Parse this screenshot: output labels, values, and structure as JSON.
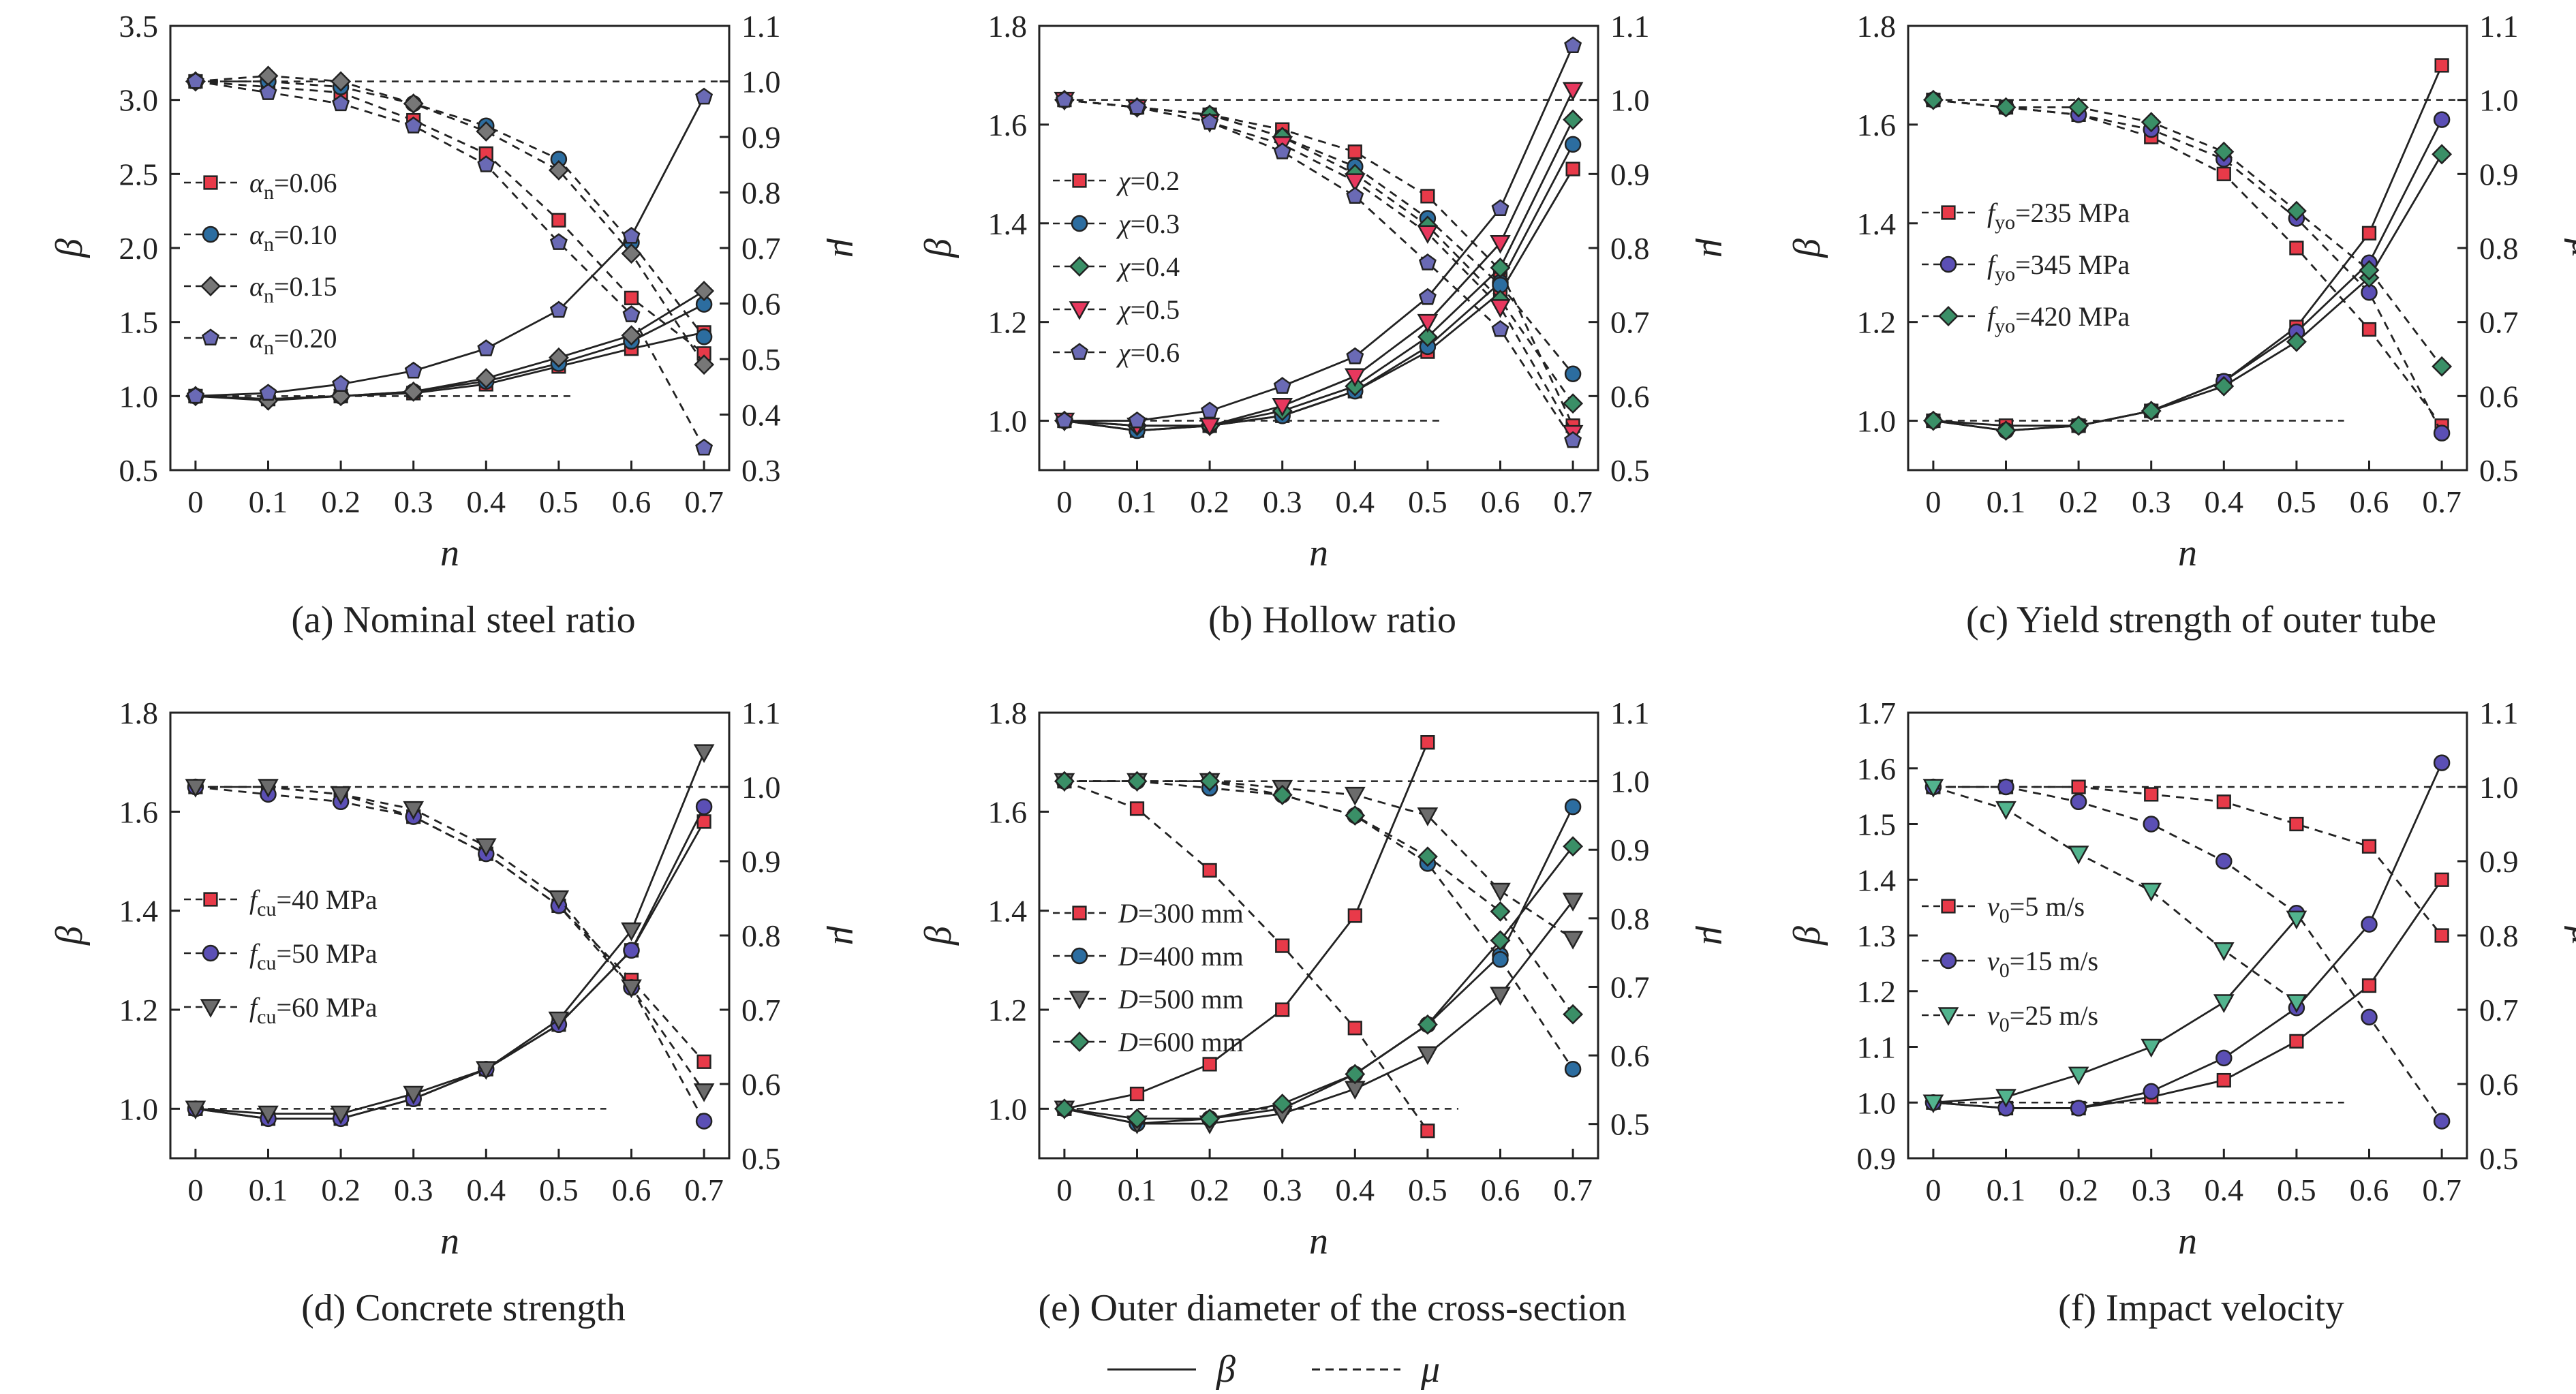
{
  "figure": {
    "legend": [
      {
        "label": "β",
        "style": "solid"
      },
      {
        "label": "μ",
        "style": "dashed"
      }
    ]
  },
  "marker_styles": {
    "square": {
      "color": "#e83a49"
    },
    "circle": {
      "color": "#2c6da0"
    },
    "diamond": {
      "color": "#777777"
    },
    "pentagon": {
      "color": "#6a6ab5"
    },
    "purple_circle": {
      "color": "#5b4fb5"
    },
    "green_diamond": {
      "color": "#3a8f67"
    },
    "triangle_down": {
      "color": "#e8385e"
    },
    "gray_triangle": {
      "color": "#6c6c6c"
    },
    "green_triangle": {
      "color": "#52b48e"
    }
  },
  "chart_data": [
    {
      "type": "line",
      "caption": "(a) Nominal steel ratio",
      "xlabel": "n",
      "ylabel": "β",
      "y2label": "μ",
      "x": [
        0,
        0.1,
        0.2,
        0.3,
        0.4,
        0.5,
        0.6,
        0.7
      ],
      "x_ticks": [
        "0",
        "0.1",
        "0.2",
        "0.3",
        "0.4",
        "0.5",
        "0.6",
        "0.7"
      ],
      "ylim": [
        0.5,
        3.5
      ],
      "y_ticks": [
        "0.5",
        "1.0",
        "1.5",
        "2.0",
        "2.5",
        "3.0",
        "3.5"
      ],
      "y2lim": [
        0.3,
        1.1
      ],
      "y2_ticks": [
        "0.3",
        "0.4",
        "0.5",
        "0.6",
        "0.7",
        "0.8",
        "0.9",
        "1.0",
        "1.1"
      ],
      "reference_lines": {
        "beta": 1.0,
        "mu": 1.0
      },
      "legend_items": [
        {
          "var": "α",
          "sub": "n",
          "text": "=0.06"
        },
        {
          "var": "α",
          "sub": "n",
          "text": "=0.10"
        },
        {
          "var": "α",
          "sub": "n",
          "text": "=0.15"
        },
        {
          "var": "α",
          "sub": "n",
          "text": "=0.20"
        }
      ],
      "series": [
        {
          "marker": "square",
          "beta": [
            1.0,
            0.98,
            1.0,
            1.02,
            1.08,
            1.2,
            1.32,
            1.43
          ],
          "mu": [
            1.0,
            0.99,
            0.98,
            0.93,
            0.87,
            0.75,
            0.61,
            0.51
          ]
        },
        {
          "marker": "circle",
          "beta": [
            1.0,
            0.98,
            1.0,
            1.03,
            1.1,
            1.22,
            1.37,
            1.62
          ],
          "mu": [
            1.0,
            1.0,
            0.99,
            0.96,
            0.92,
            0.86,
            0.71,
            0.54
          ]
        },
        {
          "marker": "diamond",
          "beta": [
            1.0,
            0.97,
            1.0,
            1.03,
            1.12,
            1.26,
            1.41,
            1.71
          ],
          "mu": [
            1.0,
            1.01,
            1.0,
            0.96,
            0.91,
            0.84,
            0.69,
            0.49
          ]
        },
        {
          "marker": "pentagon",
          "beta": [
            1.0,
            1.02,
            1.08,
            1.17,
            1.32,
            1.58,
            2.08,
            3.02
          ],
          "mu": [
            1.0,
            0.98,
            0.96,
            0.92,
            0.85,
            0.71,
            0.58,
            0.34
          ]
        }
      ]
    },
    {
      "type": "line",
      "caption": "(b) Hollow ratio",
      "xlabel": "n",
      "ylabel": "β",
      "y2label": "μ",
      "x": [
        0,
        0.1,
        0.2,
        0.3,
        0.4,
        0.5,
        0.6,
        0.7
      ],
      "x_ticks": [
        "0",
        "0.1",
        "0.2",
        "0.3",
        "0.4",
        "0.5",
        "0.6",
        "0.7"
      ],
      "ylim": [
        0.9,
        1.8
      ],
      "y_ticks": [
        "1.0",
        "1.2",
        "1.4",
        "1.6",
        "1.8"
      ],
      "y2lim": [
        0.5,
        1.1
      ],
      "y2_ticks": [
        "0.5",
        "0.6",
        "0.7",
        "0.8",
        "0.9",
        "1.0",
        "1.1"
      ],
      "reference_lines": {
        "beta": 1.0,
        "mu": 1.0
      },
      "legend_items": [
        {
          "var": "χ",
          "sub": "",
          "text": "=0.2"
        },
        {
          "var": "χ",
          "sub": "",
          "text": "=0.3"
        },
        {
          "var": "χ",
          "sub": "",
          "text": "=0.4"
        },
        {
          "var": "χ",
          "sub": "",
          "text": "=0.5"
        },
        {
          "var": "χ",
          "sub": "",
          "text": "=0.6"
        }
      ],
      "series": [
        {
          "marker": "square",
          "beta": [
            1.0,
            0.98,
            0.99,
            1.01,
            1.06,
            1.14,
            1.26,
            1.51
          ],
          "mu": [
            1.0,
            0.99,
            0.98,
            0.96,
            0.93,
            0.87,
            0.77,
            0.56
          ]
        },
        {
          "marker": "circle",
          "beta": [
            1.0,
            0.98,
            0.99,
            1.01,
            1.06,
            1.15,
            1.28,
            1.56
          ],
          "mu": [
            1.0,
            0.99,
            0.98,
            0.95,
            0.91,
            0.84,
            0.75,
            0.63
          ]
        },
        {
          "marker": "green_diamond",
          "beta": [
            1.0,
            0.99,
            0.99,
            1.02,
            1.07,
            1.17,
            1.31,
            1.61
          ],
          "mu": [
            1.0,
            0.99,
            0.98,
            0.95,
            0.9,
            0.83,
            0.73,
            0.59
          ]
        },
        {
          "marker": "triangle_down",
          "beta": [
            1.0,
            0.99,
            0.99,
            1.03,
            1.09,
            1.2,
            1.36,
            1.67
          ],
          "mu": [
            1.0,
            0.99,
            0.97,
            0.94,
            0.89,
            0.82,
            0.72,
            0.55
          ]
        },
        {
          "marker": "pentagon",
          "beta": [
            1.0,
            1.0,
            1.02,
            1.07,
            1.13,
            1.25,
            1.43,
            1.76
          ],
          "mu": [
            1.0,
            0.99,
            0.97,
            0.93,
            0.87,
            0.78,
            0.69,
            0.54
          ]
        }
      ]
    },
    {
      "type": "line",
      "caption": "(c) Yield strength of outer tube",
      "xlabel": "n",
      "ylabel": "β",
      "y2label": "μ",
      "x": [
        0,
        0.1,
        0.2,
        0.3,
        0.4,
        0.5,
        0.6,
        0.7
      ],
      "x_ticks": [
        "0",
        "0.1",
        "0.2",
        "0.3",
        "0.4",
        "0.5",
        "0.6",
        "0.7"
      ],
      "ylim": [
        0.9,
        1.8
      ],
      "y_ticks": [
        "1.0",
        "1.2",
        "1.4",
        "1.6",
        "1.8"
      ],
      "y2lim": [
        0.5,
        1.1
      ],
      "y2_ticks": [
        "0.5",
        "0.6",
        "0.7",
        "0.8",
        "0.9",
        "1.0",
        "1.1"
      ],
      "reference_lines": {
        "beta": 1.0,
        "mu": 1.0
      },
      "legend_items": [
        {
          "var": "f",
          "sub": "yo",
          "text": "=235 MPa"
        },
        {
          "var": "f",
          "sub": "yo",
          "text": "=345 MPa"
        },
        {
          "var": "f",
          "sub": "yo",
          "text": "=420 MPa"
        }
      ],
      "series": [
        {
          "marker": "square",
          "beta": [
            1.0,
            0.99,
            0.99,
            1.02,
            1.08,
            1.19,
            1.38,
            1.72
          ],
          "mu": [
            1.0,
            0.99,
            0.98,
            0.95,
            0.9,
            0.8,
            0.69,
            0.56
          ]
        },
        {
          "marker": "purple_circle",
          "beta": [
            1.0,
            0.98,
            0.99,
            1.02,
            1.08,
            1.18,
            1.32,
            1.61
          ],
          "mu": [
            1.0,
            0.99,
            0.98,
            0.96,
            0.92,
            0.84,
            0.74,
            0.55
          ]
        },
        {
          "marker": "green_diamond",
          "beta": [
            1.0,
            0.98,
            0.99,
            1.02,
            1.07,
            1.16,
            1.29,
            1.54
          ],
          "mu": [
            1.0,
            0.99,
            0.99,
            0.97,
            0.93,
            0.85,
            0.77,
            0.64
          ]
        }
      ]
    },
    {
      "type": "line",
      "caption": "(d) Concrete strength",
      "xlabel": "n",
      "ylabel": "β",
      "y2label": "μ",
      "x": [
        0,
        0.1,
        0.2,
        0.3,
        0.4,
        0.5,
        0.6,
        0.7
      ],
      "x_ticks": [
        "0",
        "0.1",
        "0.2",
        "0.3",
        "0.4",
        "0.5",
        "0.6",
        "0.7"
      ],
      "ylim": [
        0.9,
        1.8
      ],
      "y_ticks": [
        "1.0",
        "1.2",
        "1.4",
        "1.6",
        "1.8"
      ],
      "y2lim": [
        0.5,
        1.1
      ],
      "y2_ticks": [
        "0.5",
        "0.6",
        "0.7",
        "0.8",
        "0.9",
        "1.0",
        "1.1"
      ],
      "reference_lines": {
        "beta": 1.0,
        "mu": 1.0
      },
      "legend_items": [
        {
          "var": "f",
          "sub": "cu",
          "text": "=40 MPa"
        },
        {
          "var": "f",
          "sub": "cu",
          "text": "=50 MPa"
        },
        {
          "var": "f",
          "sub": "cu",
          "text": "=60 MPa"
        }
      ],
      "series": [
        {
          "marker": "square",
          "beta": [
            1.0,
            0.98,
            0.98,
            1.02,
            1.08,
            1.17,
            1.32,
            1.58
          ],
          "mu": [
            1.0,
            1.0,
            0.99,
            0.96,
            0.91,
            0.84,
            0.74,
            0.63
          ]
        },
        {
          "marker": "purple_circle",
          "beta": [
            1.0,
            0.98,
            0.98,
            1.02,
            1.08,
            1.17,
            1.32,
            1.61
          ],
          "mu": [
            1.0,
            0.99,
            0.98,
            0.96,
            0.91,
            0.84,
            0.73,
            0.55
          ]
        },
        {
          "marker": "gray_triangle",
          "beta": [
            1.0,
            0.99,
            0.99,
            1.03,
            1.08,
            1.18,
            1.36,
            1.72
          ],
          "mu": [
            1.0,
            1.0,
            0.99,
            0.97,
            0.92,
            0.85,
            0.73,
            0.59
          ]
        }
      ]
    },
    {
      "type": "line",
      "caption": "(e) Outer diameter of the cross-section",
      "xlabel": "n",
      "ylabel": "β",
      "y2label": "μ",
      "x": [
        0,
        0.1,
        0.2,
        0.3,
        0.4,
        0.5,
        0.6,
        0.7
      ],
      "x_ticks": [
        "0",
        "0.1",
        "0.2",
        "0.3",
        "0.4",
        "0.5",
        "0.6",
        "0.7"
      ],
      "ylim": [
        0.9,
        1.8
      ],
      "y_ticks": [
        "1.0",
        "1.2",
        "1.4",
        "1.6",
        "1.8"
      ],
      "y2lim": [
        0.45,
        1.1
      ],
      "y2_ticks": [
        "0.5",
        "0.6",
        "0.7",
        "0.8",
        "0.9",
        "1.0",
        "1.1"
      ],
      "reference_lines": {
        "beta": 1.0,
        "mu": 1.0
      },
      "legend_items": [
        {
          "var": "D",
          "sub": "",
          "text": "=300 mm"
        },
        {
          "var": "D",
          "sub": "",
          "text": "=400 mm"
        },
        {
          "var": "D",
          "sub": "",
          "text": "=500 mm"
        },
        {
          "var": "D",
          "sub": "",
          "text": "=600 mm"
        }
      ],
      "series": [
        {
          "marker": "square",
          "beta": [
            1.0,
            1.03,
            1.09,
            1.2,
            1.39,
            1.74,
            null,
            null
          ],
          "mu": [
            1.0,
            0.96,
            0.87,
            0.76,
            0.64,
            0.49,
            null,
            null
          ]
        },
        {
          "marker": "circle",
          "beta": [
            1.0,
            0.97,
            0.98,
            1.0,
            1.07,
            1.17,
            1.31,
            1.61
          ],
          "mu": [
            1.0,
            1.0,
            0.99,
            0.98,
            0.95,
            0.88,
            0.74,
            0.58
          ]
        },
        {
          "marker": "gray_triangle",
          "beta": [
            1.0,
            0.97,
            0.97,
            0.99,
            1.04,
            1.11,
            1.23,
            1.42
          ],
          "mu": [
            1.0,
            1.0,
            1.0,
            0.99,
            0.98,
            0.95,
            0.84,
            0.77
          ]
        },
        {
          "marker": "green_diamond",
          "beta": [
            1.0,
            0.98,
            0.98,
            1.01,
            1.07,
            1.17,
            1.34,
            1.53
          ],
          "mu": [
            1.0,
            1.0,
            1.0,
            0.98,
            0.95,
            0.89,
            0.81,
            0.66
          ]
        }
      ]
    },
    {
      "type": "line",
      "caption": "(f) Impact velocity",
      "xlabel": "n",
      "ylabel": "β",
      "y2label": "μ",
      "x": [
        0,
        0.1,
        0.2,
        0.3,
        0.4,
        0.5,
        0.6,
        0.7
      ],
      "x_ticks": [
        "0",
        "0.1",
        "0.2",
        "0.3",
        "0.4",
        "0.5",
        "0.6",
        "0.7"
      ],
      "ylim": [
        0.9,
        1.7
      ],
      "y_ticks": [
        "0.9",
        "1.0",
        "1.1",
        "1.2",
        "1.3",
        "1.4",
        "1.5",
        "1.6",
        "1.7"
      ],
      "y2lim": [
        0.5,
        1.1
      ],
      "y2_ticks": [
        "0.5",
        "0.6",
        "0.7",
        "0.8",
        "0.9",
        "1.0",
        "1.1"
      ],
      "reference_lines": {
        "beta": 1.0,
        "mu": 1.0
      },
      "legend_items": [
        {
          "var": "v",
          "sub": "0",
          "text": "=5 m/s"
        },
        {
          "var": "v",
          "sub": "0",
          "text": "=15 m/s"
        },
        {
          "var": "v",
          "sub": "0",
          "text": "=25 m/s"
        }
      ],
      "series": [
        {
          "marker": "square",
          "beta": [
            1.0,
            0.99,
            0.99,
            1.01,
            1.04,
            1.11,
            1.21,
            1.4
          ],
          "mu": [
            1.0,
            1.0,
            1.0,
            0.99,
            0.98,
            0.95,
            0.92,
            0.8
          ]
        },
        {
          "marker": "purple_circle",
          "beta": [
            1.0,
            0.99,
            0.99,
            1.02,
            1.08,
            1.17,
            1.32,
            1.61
          ],
          "mu": [
            1.0,
            1.0,
            0.98,
            0.95,
            0.9,
            0.83,
            0.69,
            0.55
          ]
        },
        {
          "marker": "green_triangle",
          "beta": [
            1.0,
            1.01,
            1.05,
            1.1,
            1.18,
            1.33,
            null,
            null
          ],
          "mu": [
            1.0,
            0.97,
            0.91,
            0.86,
            0.78,
            0.71,
            null,
            null
          ]
        }
      ]
    }
  ]
}
